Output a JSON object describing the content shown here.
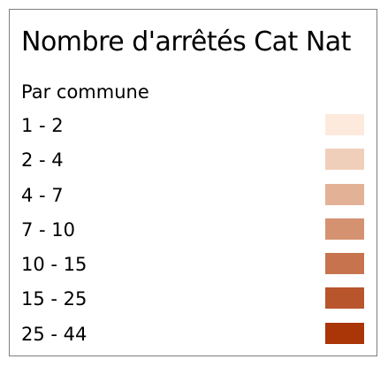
{
  "legend": {
    "title": "Nombre d'arrêtés Cat Nat",
    "subtitle": "Par commune",
    "items": [
      {
        "label": "1 - 2",
        "color": "#fdeadd"
      },
      {
        "label": "2 - 4",
        "color": "#f0cfba"
      },
      {
        "label": "4 - 7",
        "color": "#e3b196"
      },
      {
        "label": "7 - 10",
        "color": "#d59271"
      },
      {
        "label": "10 - 15",
        "color": "#c7744e"
      },
      {
        "label": "15 - 25",
        "color": "#b9552c"
      },
      {
        "label": "25 - 44",
        "color": "#aa3507"
      }
    ]
  }
}
